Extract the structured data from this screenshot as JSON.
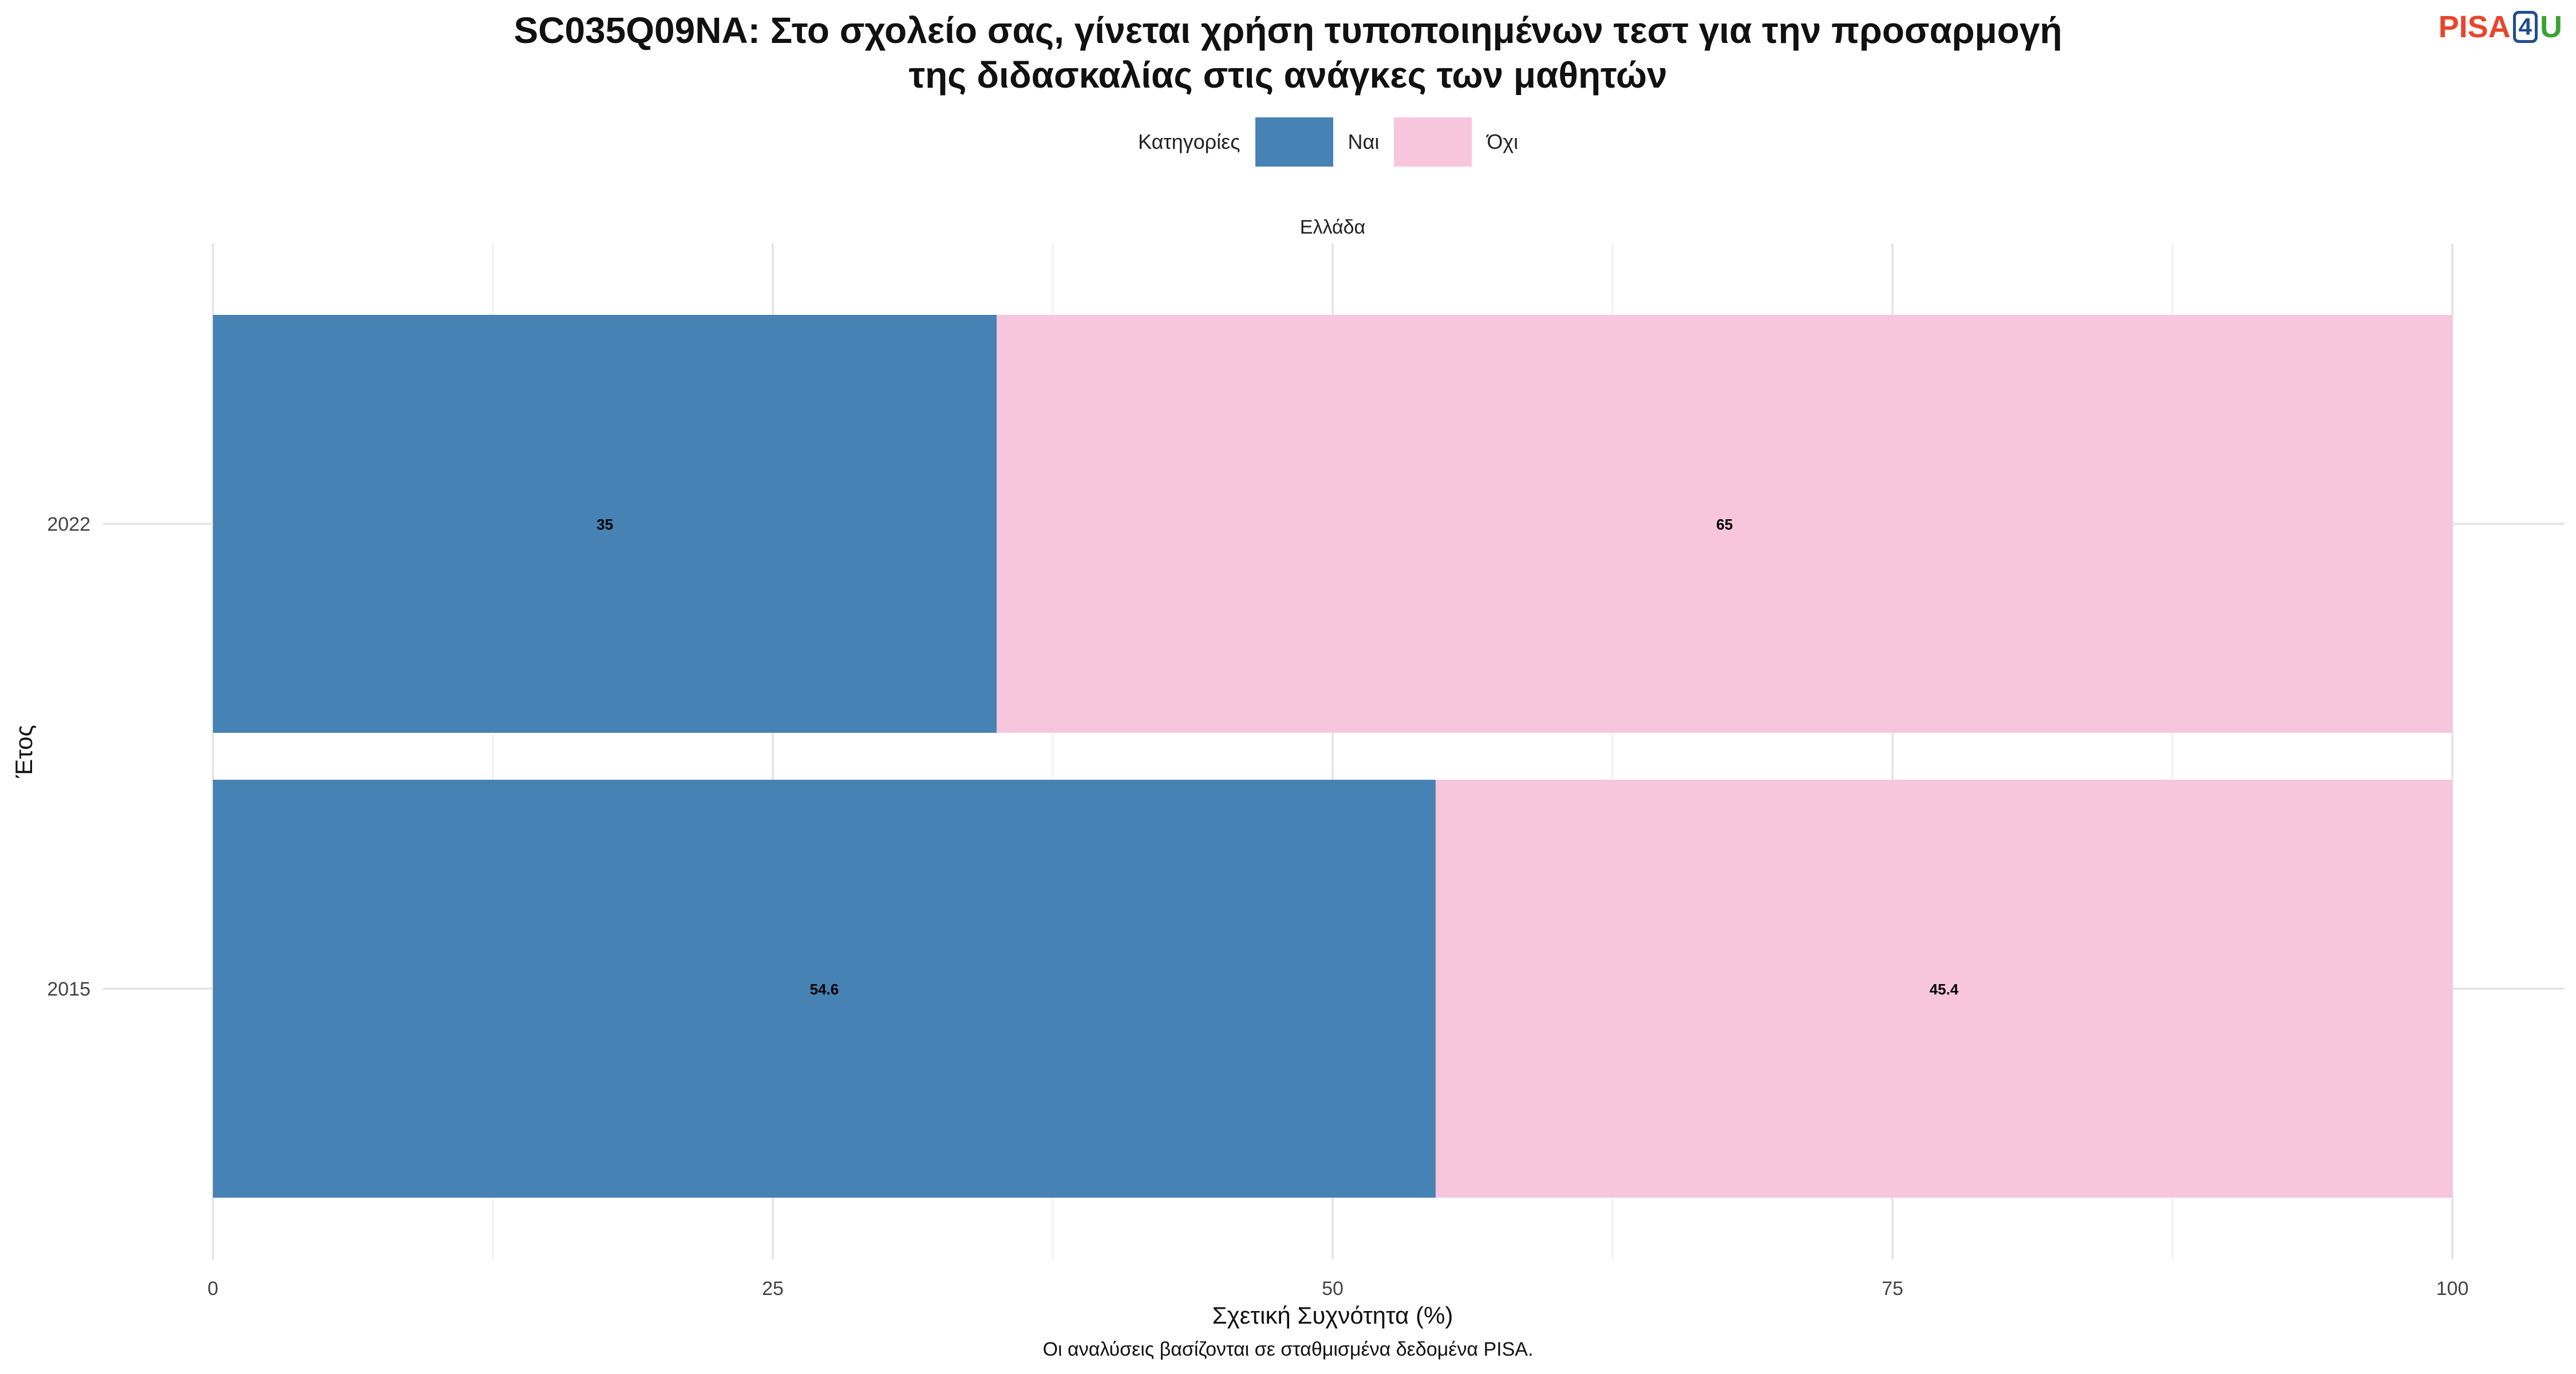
{
  "title_lines": [
    "SC035Q09NA: Στο σχολείο σας, γίνεται χρήση τυποποιημένων τεστ για την προσαρμογή",
    "της διδασκαλίας στις ανάγκες των μαθητών"
  ],
  "logo": {
    "pisa": "PISA",
    "four": "4",
    "u": "U"
  },
  "legend": {
    "title": "Κατηγορίες",
    "items": [
      {
        "label": "Ναι",
        "color": "#4682b4"
      },
      {
        "label": "Όχι",
        "color": "#f7c6dc"
      }
    ]
  },
  "caption": "Οι αναλύσεις βασίζονται σε σταθμισμένα δεδομένα PISA.",
  "chart_data": {
    "type": "bar",
    "orientation": "horizontal",
    "stacked": true,
    "facet": "Ελλάδα",
    "categories": [
      "2022",
      "2015"
    ],
    "series": [
      {
        "name": "Ναι",
        "color": "#4682b4",
        "values": [
          35,
          54.6
        ]
      },
      {
        "name": "Όχι",
        "color": "#f7c6dc",
        "values": [
          65,
          45.4
        ]
      }
    ],
    "xlabel": "Σχετική Συχνότητα (%)",
    "ylabel": "Έτος",
    "xlim": [
      0,
      100
    ],
    "xticks": [
      0,
      25,
      50,
      75,
      100
    ],
    "grid": true,
    "legend_position": "top"
  }
}
